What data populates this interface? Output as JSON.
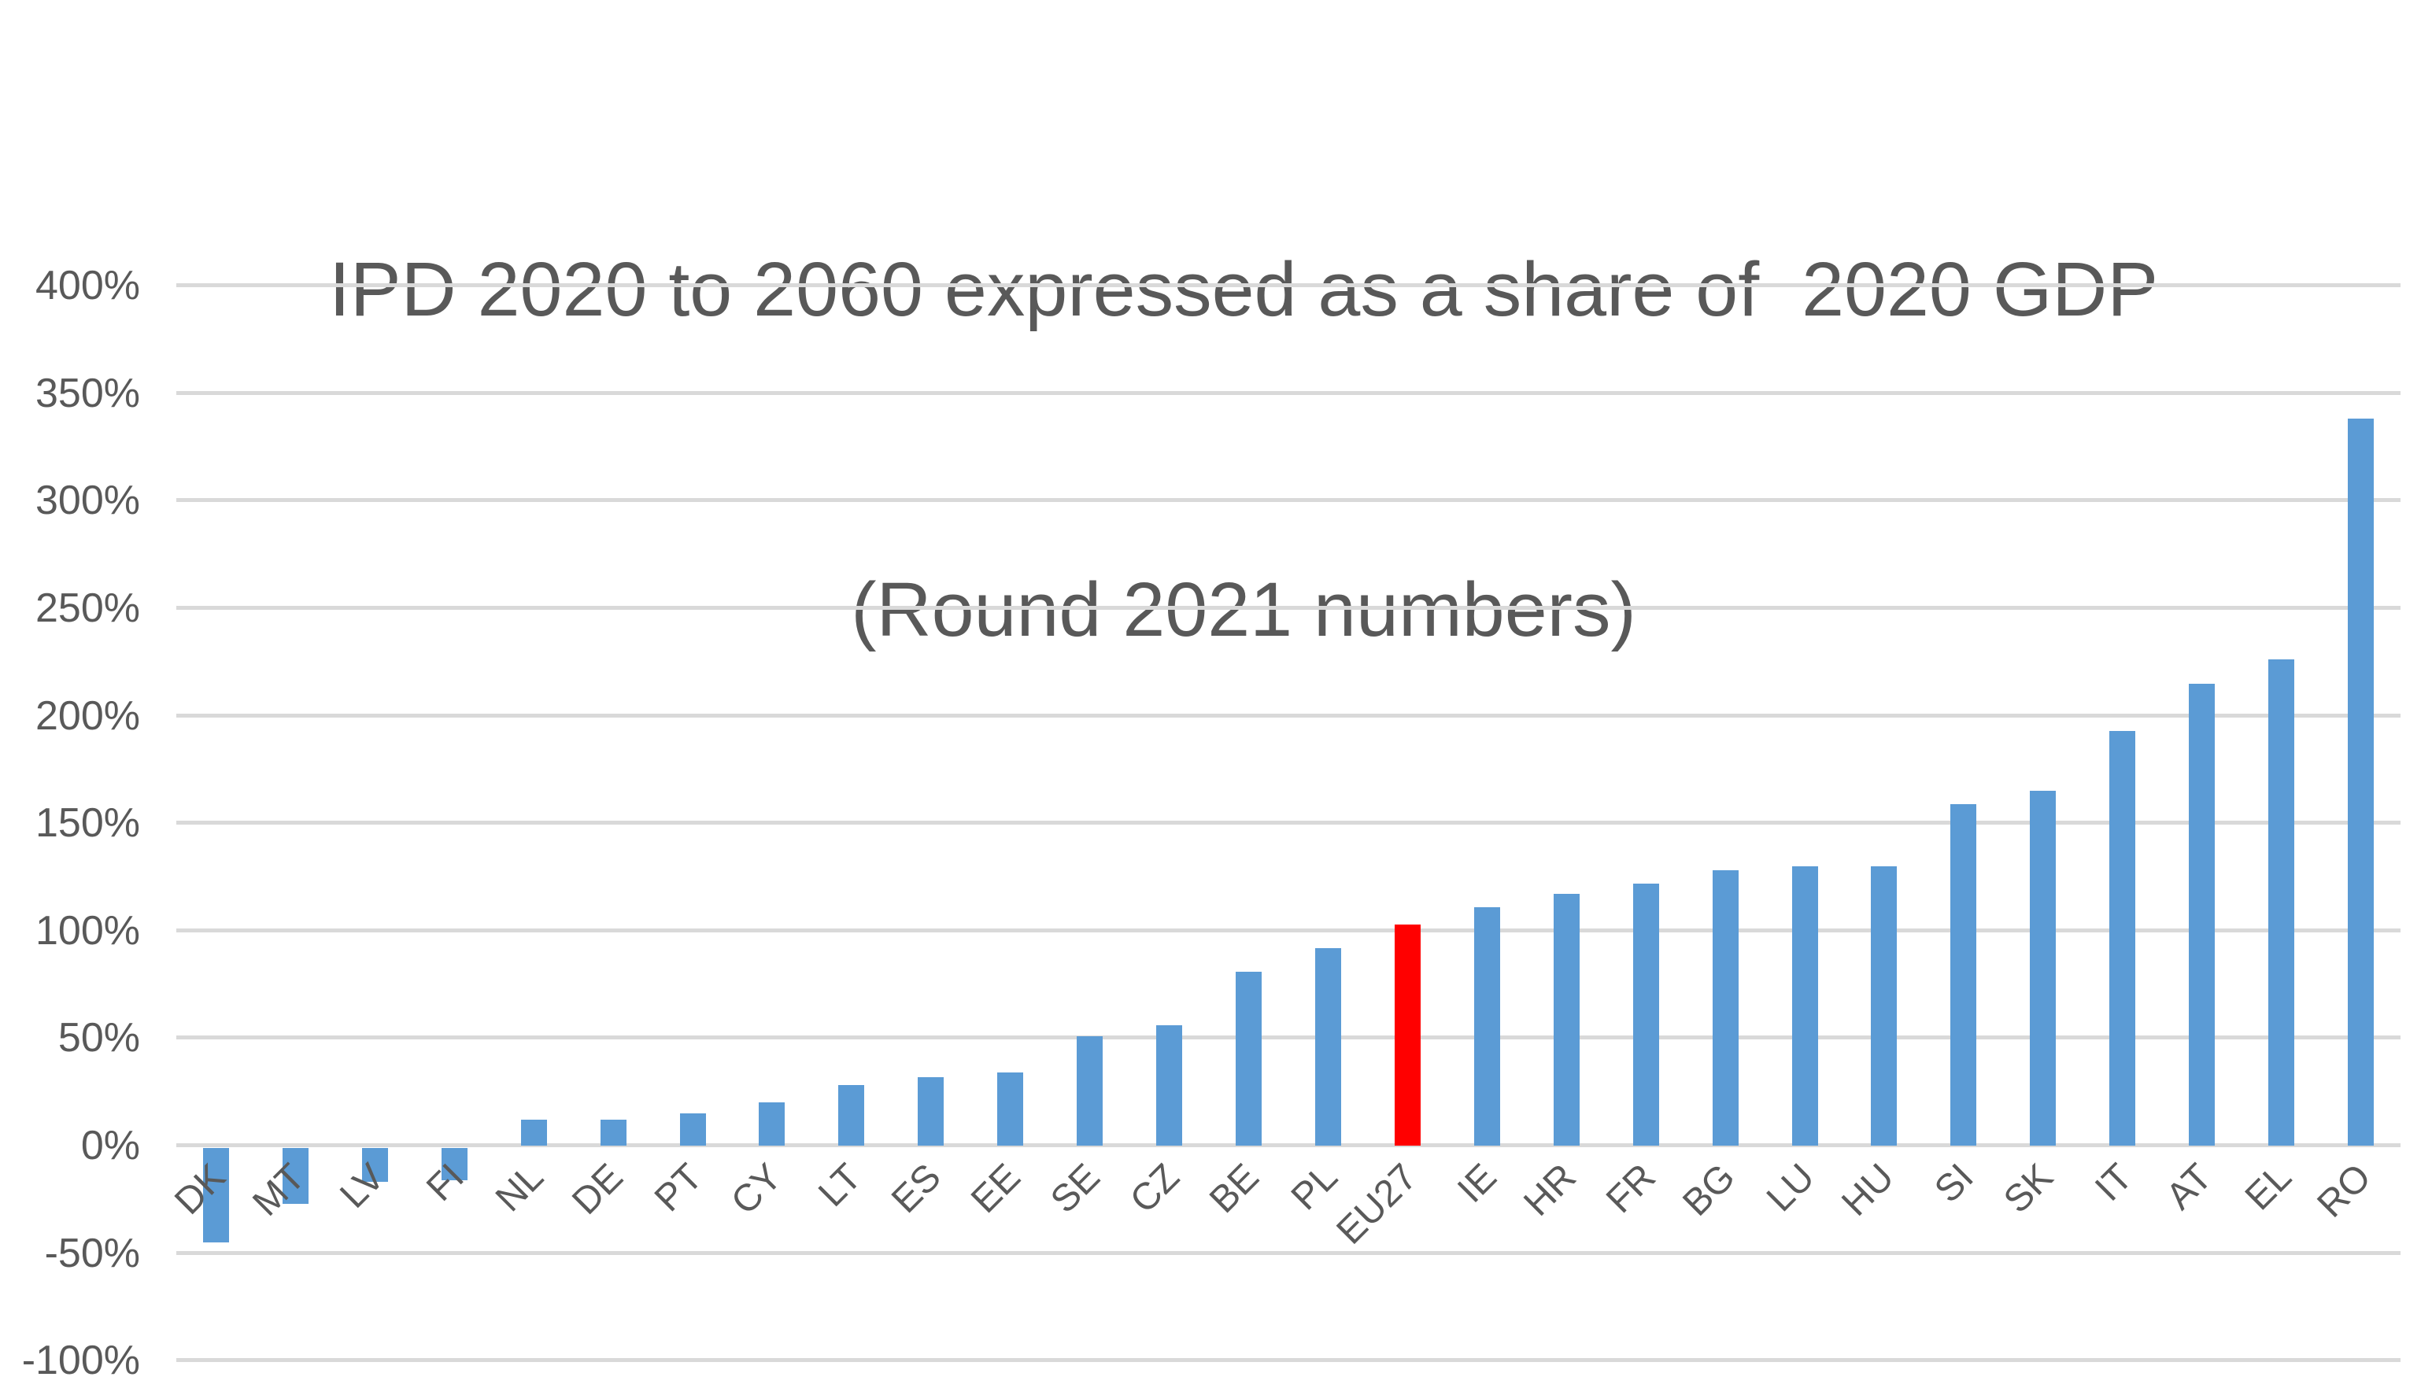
{
  "title": {
    "line1": "IPD 2020 to 2060 expressed as a share of  2020 GDP",
    "line2": "(Round 2021 numbers)"
  },
  "chart_data": {
    "type": "bar",
    "title": "IPD 2020 to 2060 expressed as a share of  2020 GDP (Round 2021 numbers)",
    "categories": [
      "DK",
      "MT",
      "LV",
      "FI",
      "NL",
      "DE",
      "PT",
      "CY",
      "LT",
      "ES",
      "EE",
      "SE",
      "CZ",
      "BE",
      "PL",
      "EU27",
      "IE",
      "HR",
      "FR",
      "BG",
      "LU",
      "HU",
      "SI",
      "SK",
      "IT",
      "AT",
      "EL",
      "RO"
    ],
    "values": [
      -45,
      -27,
      -17,
      -16,
      12,
      12,
      15,
      20,
      28,
      32,
      34,
      51,
      56,
      81,
      92,
      103,
      111,
      117,
      122,
      128,
      130,
      130,
      159,
      165,
      193,
      215,
      226,
      338
    ],
    "unit": "%",
    "highlight_category": "EU27",
    "ylim": [
      -100,
      400
    ],
    "ytick_step": 50,
    "ytick_labels": [
      "400%",
      "350%",
      "300%",
      "250%",
      "200%",
      "150%",
      "100%",
      "50%",
      "0%",
      "-50%",
      "-100%"
    ],
    "ytick_values": [
      400,
      350,
      300,
      250,
      200,
      150,
      100,
      50,
      0,
      -50,
      -100
    ],
    "grid": true,
    "legend": false,
    "xlabel": "",
    "ylabel": "",
    "colors": {
      "bar": "#5B9BD5",
      "highlight": "#FF0000",
      "gridline": "#D9D9D9",
      "text": "#595959",
      "background": "#FFFFFF"
    }
  }
}
